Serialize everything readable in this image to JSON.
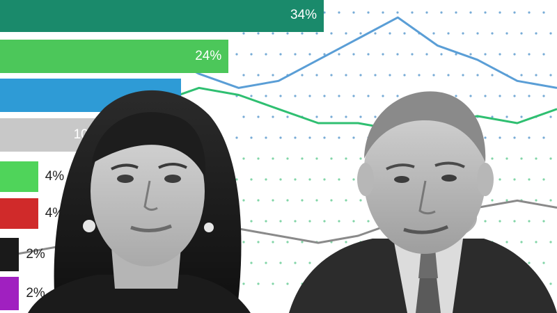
{
  "chart_data": {
    "type": "bar",
    "title": "",
    "xlabel": "",
    "ylabel": "",
    "xlim": [
      0,
      34
    ],
    "series": [
      {
        "label": "34%",
        "value": 34,
        "color": "#1a8a6b"
      },
      {
        "label": "24%",
        "value": 24,
        "color": "#4cc75a"
      },
      {
        "label": "",
        "value": 19,
        "color": "#2e9bd6"
      },
      {
        "label": "10",
        "value": 10,
        "color": "#c8c8c8"
      },
      {
        "label": "4%",
        "value": 4,
        "color": "#4fd45a"
      },
      {
        "label": "4%",
        "value": 4,
        "color": "#d02a2a"
      },
      {
        "label": "2%",
        "value": 2,
        "color": "#1a1a1a"
      },
      {
        "label": "2%",
        "value": 2,
        "color": "#a020c0"
      }
    ],
    "background_line_chart": {
      "type": "line",
      "series": [
        {
          "color": "#5a9ed6",
          "values": [
            34,
            33,
            35,
            32,
            34,
            31,
            29,
            30,
            33,
            36,
            39,
            35,
            33,
            30,
            29
          ]
        },
        {
          "color": "#2fbf71",
          "values": [
            21,
            22,
            23,
            25,
            27,
            29,
            28,
            26,
            24,
            24,
            23,
            24,
            25,
            24,
            26
          ]
        },
        {
          "color": "#8a8a8a",
          "values": [
            5,
            6,
            7,
            6,
            8,
            7,
            9,
            8,
            7,
            8,
            10,
            11,
            12,
            13,
            12
          ]
        }
      ],
      "dot_color": "#4a8fc8"
    },
    "photos": [
      {
        "name": "woman-portrait",
        "caption": ""
      },
      {
        "name": "man-portrait",
        "caption": ""
      }
    ]
  }
}
